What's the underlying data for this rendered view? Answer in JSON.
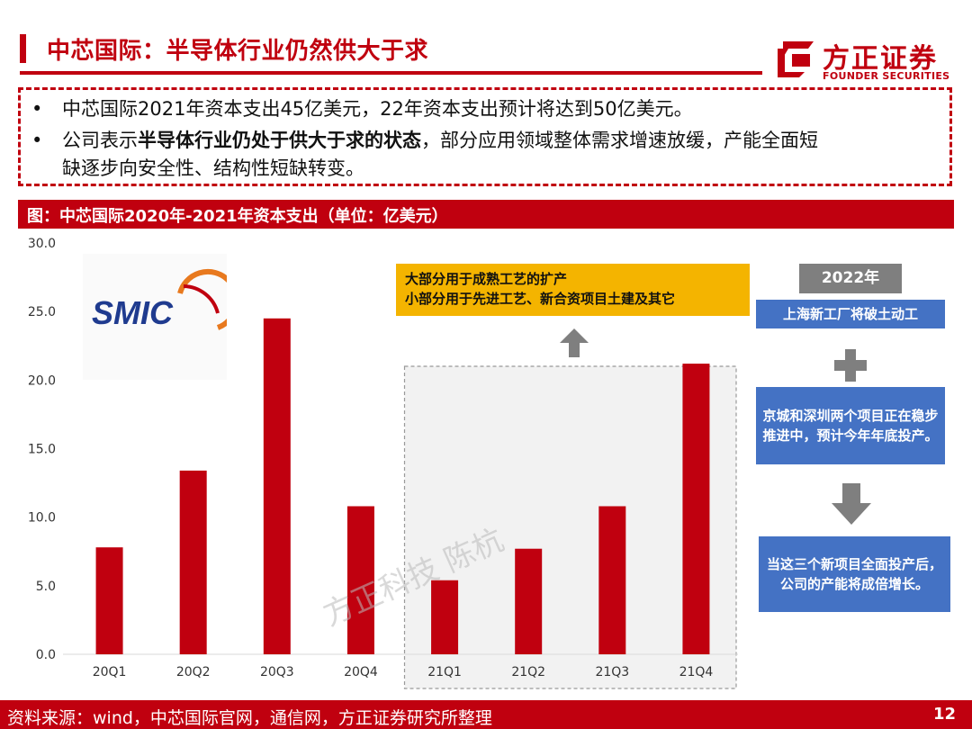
{
  "header": {
    "title": "中芯国际：半导体行业仍然供大于求",
    "logo_name": "方正证券",
    "logo_sub": "FOUNDER SECURITIES"
  },
  "bullets": {
    "dot": "•",
    "b1": "中芯国际2021年资本支出45亿美元，22年资本支出预计将达到50亿美元。",
    "b2_prefix": "公司表示",
    "b2_bold": "半导体行业仍处于供大于求的状态",
    "b2_suffix": "，部分应用领域整体需求增速放缓，产能全面短",
    "b2_line2": "缺逐步向安全性、结构性短缺转变。"
  },
  "figure": {
    "title": "图：中芯国际2020年-2021年资本支出（单位：亿美元）"
  },
  "smic_logo": {
    "text": "SMIC"
  },
  "callouts": {
    "yellow_line1": "大部分用于成熟工艺的扩产",
    "yellow_line2": "小部分用于先进工艺、新合资项目土建及其它",
    "year": "2022年",
    "blue1": "上海新工厂将破土动工",
    "blue2": "京城和深圳两个项目正在稳步推进中，预计今年年底投产。",
    "blue3": "当这三个新项目全面投产后，公司的产能将成倍增长。"
  },
  "watermark": "方正科技 陈杭",
  "footer": {
    "source": "资料来源：wind，中芯国际官网，通信网，方正证券研究所整理",
    "page": "12"
  },
  "chart_data": {
    "type": "bar",
    "categories": [
      "20Q1",
      "20Q2",
      "20Q3",
      "20Q4",
      "21Q1",
      "21Q2",
      "21Q3",
      "21Q4"
    ],
    "values": [
      7.8,
      13.4,
      24.5,
      10.8,
      5.4,
      7.7,
      10.8,
      21.2
    ],
    "ylim": [
      0,
      30
    ],
    "yticks": [
      "0.0",
      "5.0",
      "10.0",
      "15.0",
      "20.0",
      "25.0",
      "30.0"
    ],
    "grid": false,
    "highlight_range": [
      "21Q1",
      "21Q4"
    ],
    "colors": {
      "bar": "#c0000f",
      "highlight_fill": "#f2f2f2",
      "highlight_border": "#999999"
    }
  },
  "colors": {
    "brand": "#c0000f",
    "callout_yellow": "#f4b400",
    "callout_blue": "#4472c4",
    "year_gray": "#7f7f7f"
  }
}
